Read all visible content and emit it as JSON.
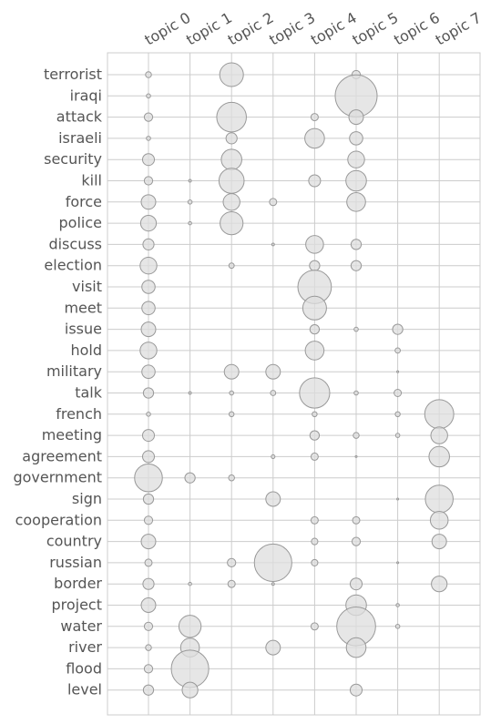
{
  "chart_data": {
    "type": "scatter",
    "subtype": "bubble-matrix",
    "x": [
      "topic 0",
      "topic 1",
      "topic 2",
      "topic 3",
      "topic 4",
      "topic 5",
      "topic 6",
      "topic 7"
    ],
    "y": [
      "terrorist",
      "iraqi",
      "attack",
      "israeli",
      "security",
      "kill",
      "force",
      "police",
      "discuss",
      "election",
      "visit",
      "meet",
      "issue",
      "hold",
      "military",
      "talk",
      "french",
      "meeting",
      "agreement",
      "government",
      "sign",
      "cooperation",
      "country",
      "russian",
      "border",
      "project",
      "water",
      "river",
      "flood",
      "level"
    ],
    "values": [
      [
        0.01,
        0.0,
        0.16,
        0.0,
        0.0,
        0.02,
        0.0,
        0.0
      ],
      [
        0.005,
        0.0,
        0.0,
        0.0,
        0.0,
        0.5,
        0.0,
        0.0
      ],
      [
        0.02,
        0.0,
        0.25,
        0.0,
        0.015,
        0.06,
        0.0,
        0.0
      ],
      [
        0.005,
        0.0,
        0.035,
        0.0,
        0.11,
        0.05,
        0.0,
        0.0
      ],
      [
        0.04,
        0.0,
        0.12,
        0.0,
        0.0,
        0.08,
        0.0,
        0.0
      ],
      [
        0.02,
        0.002,
        0.18,
        0.0,
        0.04,
        0.12,
        0.0,
        0.0
      ],
      [
        0.06,
        0.005,
        0.08,
        0.015,
        0.0,
        0.1,
        0.0,
        0.0
      ],
      [
        0.07,
        0.003,
        0.15,
        0.0,
        0.0,
        0.0,
        0.0,
        0.0
      ],
      [
        0.035,
        0.0,
        0.0,
        0.002,
        0.09,
        0.03,
        0.0,
        0.0
      ],
      [
        0.08,
        0.0,
        0.008,
        0.0,
        0.03,
        0.03,
        0.0,
        0.0
      ],
      [
        0.05,
        0.0,
        0.0,
        0.0,
        0.32,
        0.0,
        0.0,
        0.0
      ],
      [
        0.05,
        0.0,
        0.0,
        0.0,
        0.16,
        0.0,
        0.0,
        0.0
      ],
      [
        0.06,
        0.0,
        0.0,
        0.0,
        0.025,
        0.005,
        0.03,
        0.0
      ],
      [
        0.08,
        0.0,
        0.0,
        0.0,
        0.1,
        0.0,
        0.008,
        0.0
      ],
      [
        0.05,
        0.0,
        0.06,
        0.06,
        0.0,
        0.0,
        0.001,
        0.0
      ],
      [
        0.03,
        0.002,
        0.005,
        0.008,
        0.26,
        0.005,
        0.015,
        0.0
      ],
      [
        0.005,
        0.0,
        0.007,
        0.0,
        0.007,
        0.0,
        0.007,
        0.24
      ],
      [
        0.04,
        0.0,
        0.0,
        0.0,
        0.025,
        0.01,
        0.005,
        0.08
      ],
      [
        0.04,
        0.0,
        0.0,
        0.004,
        0.015,
        0.001,
        0.0,
        0.12
      ],
      [
        0.22,
        0.03,
        0.01,
        0.0,
        0.0,
        0.0,
        0.0,
        0.0
      ],
      [
        0.03,
        0.0,
        0.0,
        0.06,
        0.0,
        0.0,
        0.001,
        0.22
      ],
      [
        0.02,
        0.0,
        0.0,
        0.0,
        0.015,
        0.015,
        0.0,
        0.09
      ],
      [
        0.06,
        0.0,
        0.0,
        0.0,
        0.012,
        0.02,
        0.0,
        0.06
      ],
      [
        0.015,
        0.0,
        0.02,
        0.4,
        0.012,
        0.0,
        0.001,
        0.0
      ],
      [
        0.035,
        0.003,
        0.015,
        0.002,
        0.0,
        0.04,
        0.0,
        0.07
      ],
      [
        0.06,
        0.0,
        0.0,
        0.0,
        0.0,
        0.12,
        0.003,
        0.0
      ],
      [
        0.02,
        0.14,
        0.0,
        0.0,
        0.015,
        0.43,
        0.005,
        0.0
      ],
      [
        0.01,
        0.1,
        0.0,
        0.06,
        0.0,
        0.11,
        0.0,
        0.0
      ],
      [
        0.02,
        0.4,
        0.0,
        0.0,
        0.0,
        0.0,
        0.0,
        0.0
      ],
      [
        0.03,
        0.07,
        0.0,
        0.0,
        0.0,
        0.04,
        0.0,
        0.0
      ]
    ],
    "title": "",
    "xlabel": "",
    "ylabel": "",
    "x_axis_position": "top",
    "grid": true,
    "legend": "none",
    "colors": {
      "marker_fill": "#dddddd",
      "marker_edge": "#999999",
      "grid": "#cccccc",
      "text": "#555555",
      "background": "#ffffff"
    }
  }
}
